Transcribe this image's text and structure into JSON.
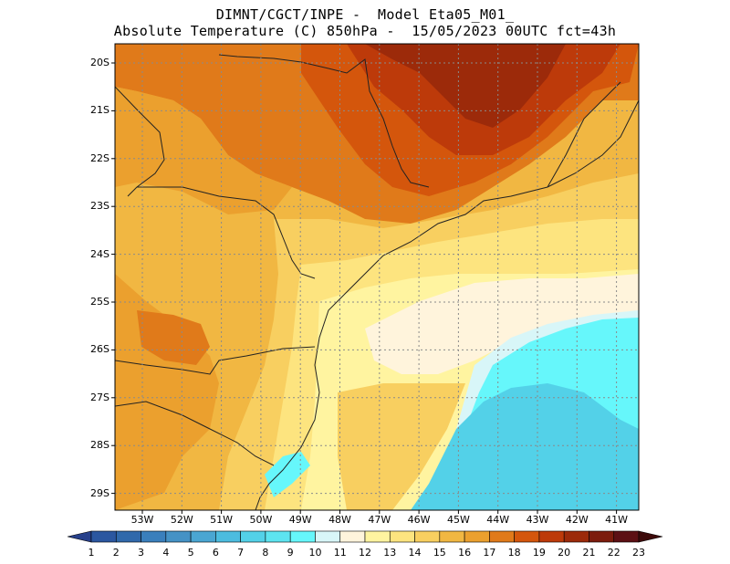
{
  "title": {
    "line1": "DIMNT/CGCT/INPE -  Model Eta05_M01_",
    "line2": "Absolute Temperature (C) 850hPa -  15/05/2023 00UTC fct=43h"
  },
  "axes": {
    "lat_labels": [
      "20S",
      "21S",
      "22S",
      "23S",
      "24S",
      "25S",
      "26S",
      "27S",
      "28S",
      "29S"
    ],
    "lon_labels": [
      "53W",
      "52W",
      "51W",
      "50W",
      "49W",
      "48W",
      "47W",
      "46W",
      "45W",
      "44W",
      "43W",
      "42W",
      "41W"
    ]
  },
  "colorbar": {
    "labels": [
      "1",
      "2",
      "3",
      "4",
      "5",
      "6",
      "7",
      "8",
      "9",
      "10",
      "11",
      "12",
      "13",
      "14",
      "15",
      "16",
      "17",
      "18",
      "19",
      "20",
      "21",
      "22",
      "23"
    ],
    "colors": [
      "#27408b",
      "#2b57a0",
      "#3069ab",
      "#3a7fbc",
      "#4592c5",
      "#4aa6d2",
      "#4cbcdf",
      "#53d1e8",
      "#5de4f0",
      "#66f7fb",
      "#d8f6f8",
      "#fff4dc",
      "#fff4a0",
      "#fde47f",
      "#f8cf60",
      "#f1b742",
      "#eba02e",
      "#e07a1a",
      "#d4560c",
      "#bd3a0a",
      "#9c2a0a",
      "#7c1c0d",
      "#5c1014",
      "#3d0a0a"
    ],
    "extend": "both"
  },
  "map": {
    "field": "Absolute Temperature (C) 850hPa",
    "bg_color": "#f2b33d",
    "contour_palette": {
      "warm_max": "#9c2a0a",
      "warm_high": "#bd3a0a",
      "warm_mid": "#d4560c",
      "warm": "#e07a1a",
      "orange": "#eba02e",
      "gold": "#f1b742",
      "yellow_orange": "#f8cf60",
      "yellow": "#fde47f",
      "pale_yellow": "#fff4a0",
      "cream": "#fff4dc",
      "ice": "#d8f6f8",
      "cyan": "#66f7fb",
      "teal": "#53d1e8"
    },
    "grid_lines": "dotted",
    "coastline_color": "#222222"
  }
}
